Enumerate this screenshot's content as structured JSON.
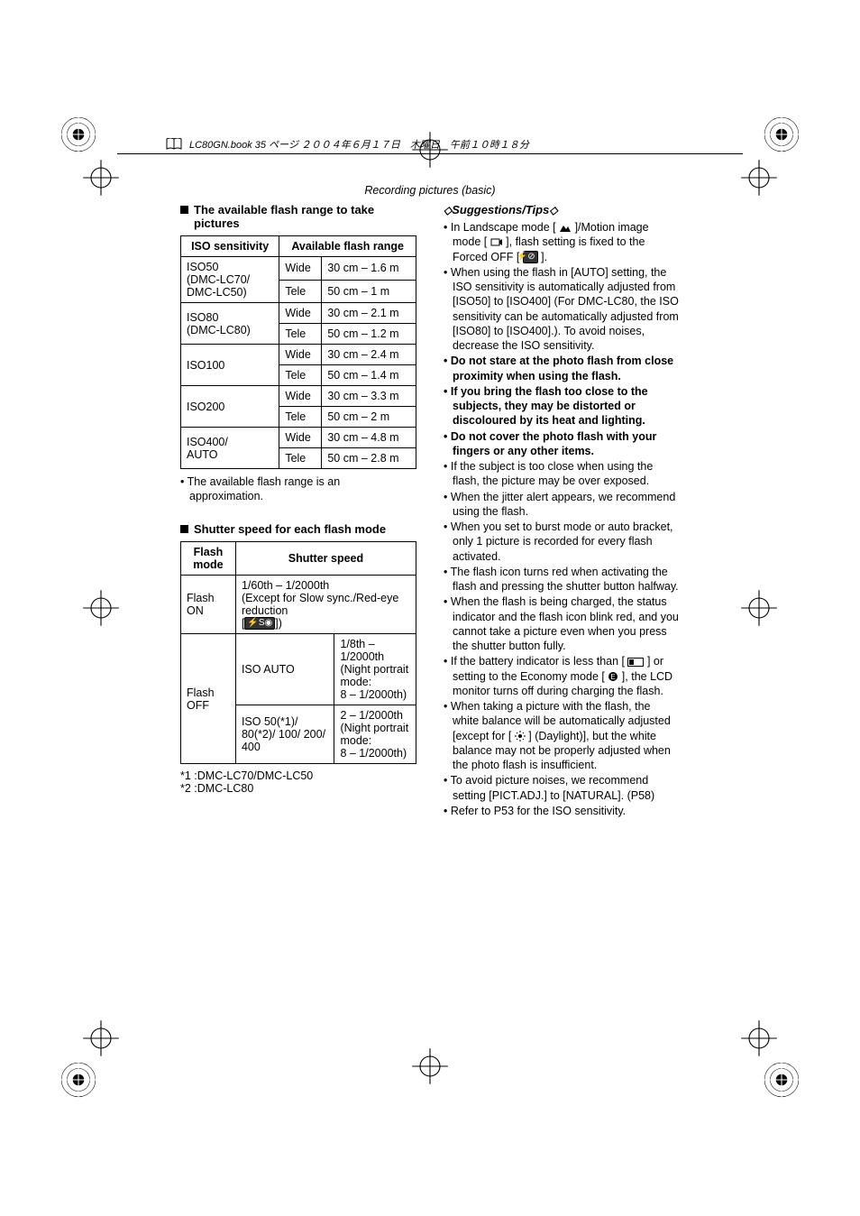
{
  "meta": {
    "header_text": "LC80GN.book  35 ページ  ２００４年６月１７日　木曜日　午前１０時１８分",
    "section_title": "Recording pictures (basic)"
  },
  "left": {
    "heading1": "The available flash range to take pictures",
    "table1": {
      "th_iso": "ISO sensitivity",
      "th_range": "Available flash range",
      "rows": [
        {
          "iso": "ISO50\n(DMC-LC70/\nDMC-LC50)",
          "zoom": [
            "Wide",
            "Tele"
          ],
          "range": [
            "30 cm – 1.6 m",
            "50 cm – 1 m"
          ]
        },
        {
          "iso": "ISO80\n(DMC-LC80)",
          "zoom": [
            "Wide",
            "Tele"
          ],
          "range": [
            "30 cm – 2.1 m",
            "50 cm – 1.2 m"
          ]
        },
        {
          "iso": "ISO100",
          "zoom": [
            "Wide",
            "Tele"
          ],
          "range": [
            "30 cm – 2.4 m",
            "50 cm – 1.4 m"
          ]
        },
        {
          "iso": "ISO200",
          "zoom": [
            "Wide",
            "Tele"
          ],
          "range": [
            "30 cm – 3.3 m",
            "50 cm – 2 m"
          ]
        },
        {
          "iso": "ISO400/\nAUTO",
          "zoom": [
            "Wide",
            "Tele"
          ],
          "range": [
            "30 cm – 4.8 m",
            "50 cm – 2.8 m"
          ]
        }
      ]
    },
    "note1": "The available flash range is an approximation.",
    "heading2": "Shutter speed for each flash mode",
    "table2": {
      "th_mode": "Flash mode",
      "th_speed": "Shutter speed",
      "row_on_mode": "Flash ON",
      "row_on_speed": "1/60th – 1/2000th\n(Except for Slow sync./Red-eye reduction\n[",
      "row_on_speed_end": "])",
      "row_off_mode": "Flash OFF",
      "row_off_1_iso": "ISO AUTO",
      "row_off_1_speed": "1/8th – 1/2000th\n(Night portrait mode:\n8 – 1/2000th)",
      "row_off_2_iso": "ISO 50(*1)/ 80(*2)/ 100/ 200/ 400",
      "row_off_2_speed": "2 – 1/2000th\n(Night portrait mode:\n8 – 1/2000th)"
    },
    "footnote1": "*1 :DMC-LC70/DMC-LC50",
    "footnote2": "*2 :DMC-LC80"
  },
  "right": {
    "tips_header": "Suggestions/Tips",
    "items": [
      {
        "text": "In Landscape mode [ ",
        "icon": "landscape-icon",
        "text2": " ]/Motion image mode [ ",
        "icon2": "motion-icon",
        "text3": " ], flash setting is fixed to the Forced OFF [ ",
        "icon3": "flash-off-icon",
        "text4": " ]."
      },
      {
        "text": "When using the flash in [AUTO] setting, the ISO sensitivity is automatically adjusted from [ISO50] to [ISO400] (For DMC-LC80, the ISO sensitivity can be automatically adjusted from [ISO80] to [ISO400].). To avoid noises, decrease the ISO sensitivity."
      },
      {
        "text": "Do not stare at the photo flash from close proximity when using the flash.",
        "bold": true
      },
      {
        "text": "If you bring the flash too close to the subjects, they may be distorted or discoloured by its heat and lighting.",
        "bold": true
      },
      {
        "text": "Do not cover the photo flash with your fingers or any other items.",
        "bold": true
      },
      {
        "text": "If the subject is too close when using the flash, the picture may be over exposed."
      },
      {
        "text": "When the jitter alert appears, we recommend using the flash."
      },
      {
        "text": "When you set to burst mode or auto bracket, only 1 picture is recorded for every flash activated."
      },
      {
        "text": "The flash icon turns red when activating the flash and pressing the shutter button halfway."
      },
      {
        "text": "When the flash is being charged, the status indicator and the flash icon blink red, and you cannot take a picture even when you press the shutter button fully."
      },
      {
        "text": "If the battery indicator is less than [ ",
        "icon": "battery-icon",
        "text2": " ] or setting to the Economy mode [ ",
        "icon2": "eco-icon",
        "text3": " ], the LCD monitor turns off during charging the flash."
      },
      {
        "text": "When taking a picture with the flash, the white balance will be automatically adjusted [except for [ ",
        "icon": "daylight-icon",
        "text2": " ] (Daylight)], but the white balance may not be properly adjusted when the photo flash is insufficient."
      },
      {
        "text": "To avoid picture noises, we recommend setting [PICT.ADJ.] to [NATURAL]. (P58)"
      },
      {
        "text": "Refer to P53 for the ISO sensitivity."
      }
    ]
  },
  "style": {
    "text_color": "#000000",
    "background": "#ffffff",
    "font_family": "Arial",
    "base_fontsize": 13,
    "table_border_color": "#000000"
  }
}
